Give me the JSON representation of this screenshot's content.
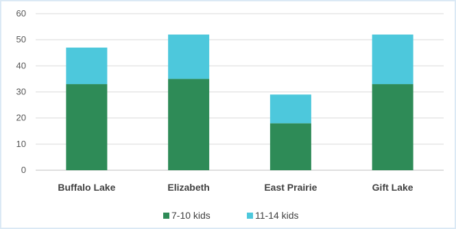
{
  "chart_data": {
    "type": "bar",
    "stacked": true,
    "categories": [
      "Buffalo Lake",
      "Elizabeth",
      "East Prairie",
      "Gift Lake"
    ],
    "series": [
      {
        "name": "7-10 kids",
        "values": [
          33,
          35,
          18,
          33
        ],
        "color": "#2e8b57"
      },
      {
        "name": "11-14 kids",
        "values": [
          14,
          17,
          11,
          19
        ],
        "color": "#4dc8dc"
      }
    ],
    "ylim": [
      0,
      60
    ],
    "yticks": [
      "0",
      "10",
      "20",
      "30",
      "40",
      "50",
      "60"
    ],
    "grid": true,
    "legend": "bottom-center",
    "title": "",
    "xlabel": "",
    "ylabel": ""
  }
}
